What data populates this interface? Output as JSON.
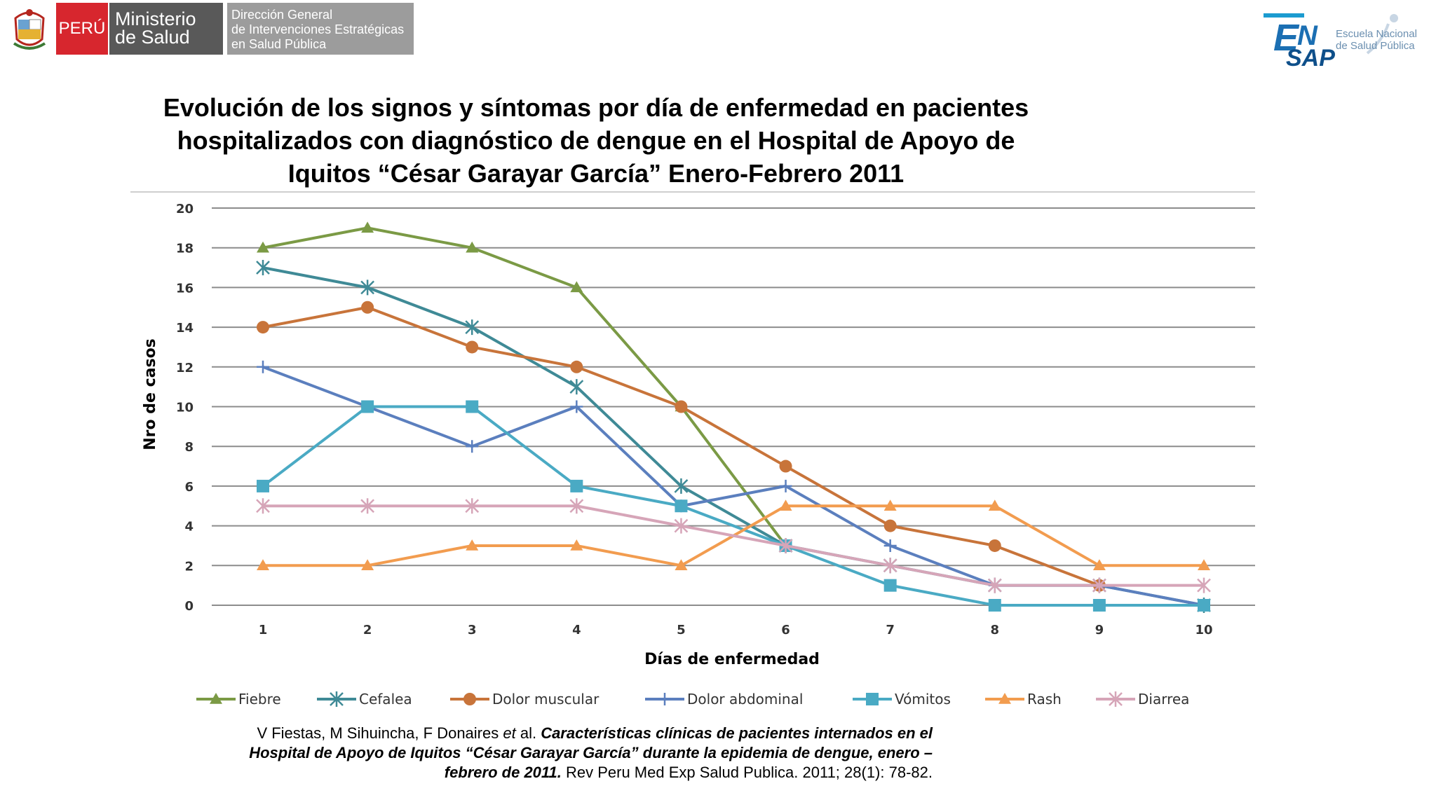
{
  "header": {
    "peru": "PERÚ",
    "ministerio_line1": "Ministerio",
    "ministerio_line2": "de Salud",
    "direccion_line1": "Dirección General",
    "direccion_line2": "de Intervenciones Estratégicas",
    "direccion_line3": "en Salud Pública",
    "ensap_line1": "Escuela Nacional",
    "ensap_line2": "de Salud Pública"
  },
  "title_line1": "Evolución de los signos y síntomas por día de enfermedad en pacientes",
  "title_line2": "hospitalizados con diagnóstico de dengue en el Hospital de Apoyo de",
  "title_line3": "Iquitos “César Garayar García” Enero-Febrero 2011",
  "source": {
    "authors": "V Fiestas, M Sihuincha, F Donaires ",
    "etal": "et",
    "al": " al. ",
    "title1": "Características clínicas de pacientes internados en el",
    "title2": "Hospital de Apoyo de Iquitos “César Garayar García” durante la epidemia de dengue, enero –",
    "title3": "febrero de 2011.",
    "journal": " Rev Peru Med Exp Salud Publica. 2011; 28(1): 78-82."
  },
  "chart_data": {
    "type": "line",
    "title": "",
    "xlabel": "Días de enfermedad",
    "ylabel": "Nro de casos",
    "x": [
      1,
      2,
      3,
      4,
      5,
      6,
      7,
      8,
      9,
      10
    ],
    "ylim": [
      0,
      20
    ],
    "yticks": [
      0,
      2,
      4,
      6,
      8,
      10,
      12,
      14,
      16,
      18,
      20
    ],
    "grid": true,
    "legend_position": "bottom",
    "series": [
      {
        "name": "Fiebre",
        "color": "#7b9a45",
        "marker": "triangle",
        "values": [
          18,
          19,
          18,
          16,
          10,
          3,
          null,
          null,
          null,
          null
        ]
      },
      {
        "name": "Cefalea",
        "color": "#3f8a96",
        "marker": "asterisk",
        "values": [
          17,
          16,
          14,
          11,
          6,
          3,
          2,
          1,
          1,
          0
        ]
      },
      {
        "name": "Dolor muscular",
        "color": "#c8743a",
        "marker": "circle",
        "values": [
          14,
          15,
          13,
          12,
          10,
          7,
          4,
          3,
          1,
          null
        ]
      },
      {
        "name": "Dolor abdominal",
        "color": "#5b7fbe",
        "marker": "plus",
        "values": [
          12,
          10,
          8,
          10,
          5,
          6,
          3,
          1,
          1,
          0
        ]
      },
      {
        "name": "Vómitos",
        "color": "#4aaac4",
        "marker": "square",
        "values": [
          6,
          10,
          10,
          6,
          5,
          3,
          1,
          0,
          0,
          0
        ]
      },
      {
        "name": "Rash",
        "color": "#f29c4f",
        "marker": "triangle",
        "values": [
          2,
          2,
          3,
          3,
          2,
          5,
          5,
          5,
          2,
          2
        ]
      },
      {
        "name": "Diarrea",
        "color": "#d6a5b8",
        "marker": "asterisk",
        "values": [
          5,
          5,
          5,
          5,
          4,
          3,
          2,
          1,
          1,
          1
        ]
      }
    ]
  }
}
